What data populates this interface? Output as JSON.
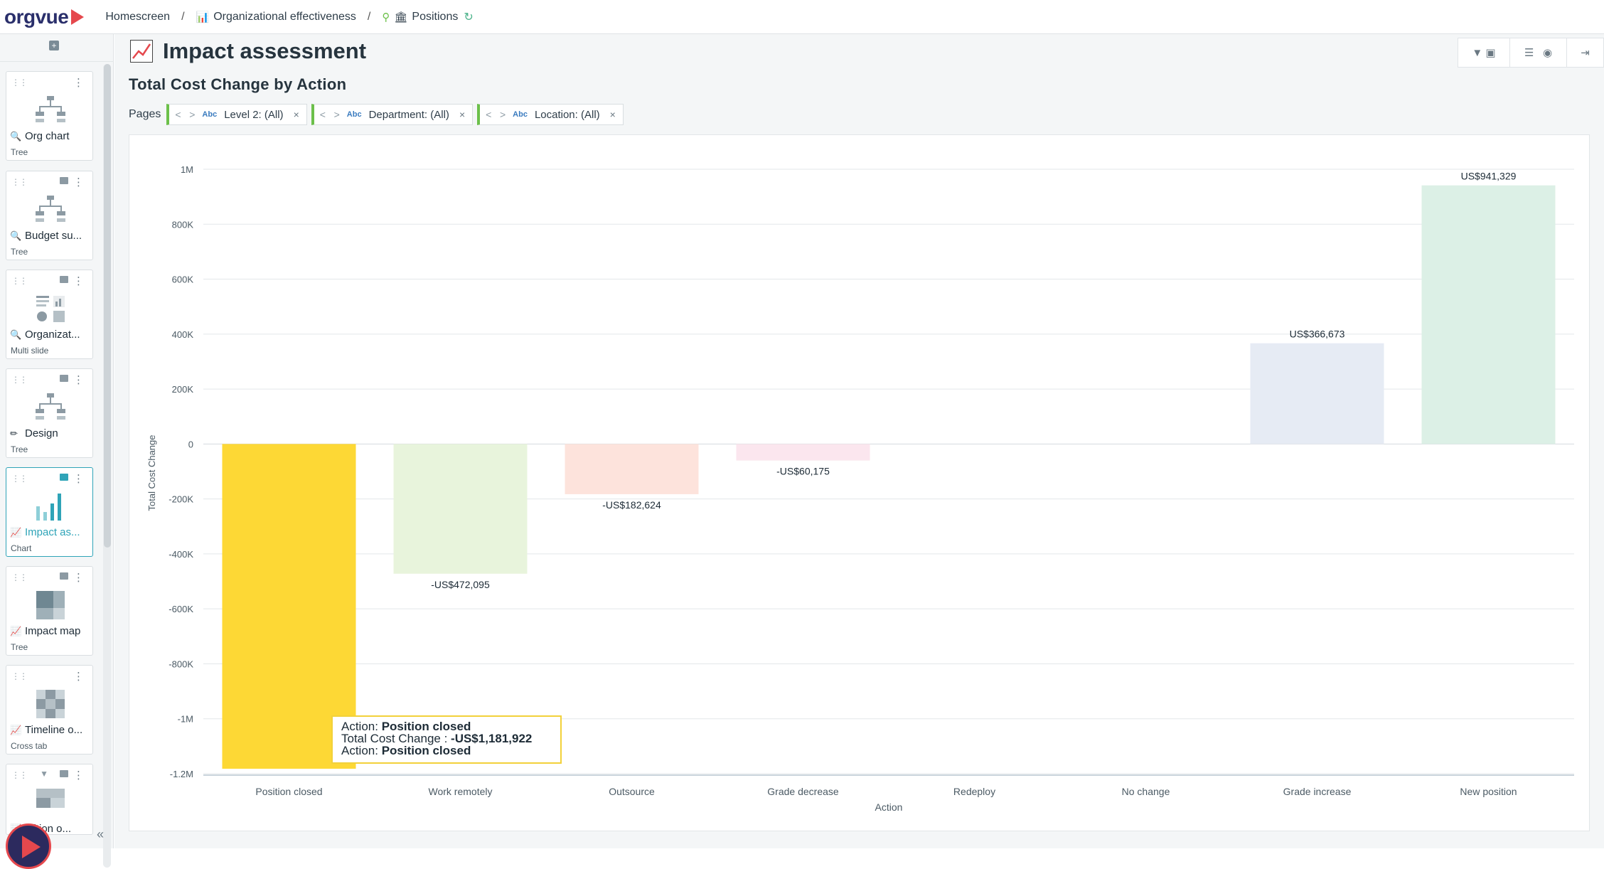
{
  "app": {
    "logo": "orgvue"
  },
  "breadcrumb": {
    "home": "Homescreen",
    "project": "Organizational effectiveness",
    "dataset": "Positions"
  },
  "sidebar": {
    "cards": [
      {
        "name": "Org chart",
        "type": "Tree",
        "icon": "search-icon"
      },
      {
        "name": "Budget su...",
        "type": "Tree",
        "icon": "search-icon"
      },
      {
        "name": "Organizat...",
        "type": "Multi slide",
        "icon": "search-icon"
      },
      {
        "name": "Design",
        "type": "Tree",
        "icon": "pencil-icon"
      },
      {
        "name": "Impact as...",
        "type": "Chart",
        "icon": "chart-icon"
      },
      {
        "name": "Impact map",
        "type": "Tree",
        "icon": "chart-icon"
      },
      {
        "name": "Timeline o...",
        "type": "Cross tab",
        "icon": "chart-icon"
      },
      {
        "name": "...ition o...",
        "type": "",
        "icon": "chart-icon"
      }
    ]
  },
  "main": {
    "title": "Impact assessment",
    "subtitle": "Total Cost Change by Action",
    "pages_label": "Pages",
    "filters": [
      {
        "type": "Abc",
        "label": "Level 2: (All)"
      },
      {
        "type": "Abc",
        "label": "Department: (All)"
      },
      {
        "type": "Abc",
        "label": "Location: (All)"
      }
    ]
  },
  "chart_data": {
    "type": "bar",
    "title": "",
    "xlabel": "Action",
    "ylabel": "Total Cost Change",
    "ylim": [
      -1200000,
      1000000
    ],
    "yticks": [
      1000000,
      800000,
      600000,
      400000,
      200000,
      0,
      -200000,
      -400000,
      -600000,
      -800000,
      -1000000,
      -1200000
    ],
    "ytick_labels": [
      "1M",
      "800K",
      "600K",
      "400K",
      "200K",
      "0",
      "-200K",
      "-400K",
      "-600K",
      "-800K",
      "-1M",
      "-1.2M"
    ],
    "categories": [
      "Position closed",
      "Work remotely",
      "Outsource",
      "Grade decrease",
      "Redeploy",
      "No change",
      "Grade increase",
      "New position"
    ],
    "values": [
      -1181922,
      -472095,
      -182624,
      -60175,
      0,
      0,
      366673,
      941329
    ],
    "data_labels": [
      "",
      "-US$472,095",
      "-US$182,624",
      "-US$60,175",
      "",
      "",
      "US$366,673",
      "US$941,329"
    ],
    "colors": [
      "#fdd835",
      "#e8f4dc",
      "#fde3dc",
      "#fbe6ee",
      "#ffffff",
      "#ffffff",
      "#e6ebf4",
      "#dcf0e6"
    ],
    "grid": true,
    "legend": "none"
  },
  "tooltip": {
    "line1_label": "Action: ",
    "line1_value": "Position closed",
    "line2_label": "Total Cost Change : ",
    "line2_value": "-US$1,181,922",
    "line3_label": "Action: ",
    "line3_value": "Position closed"
  }
}
